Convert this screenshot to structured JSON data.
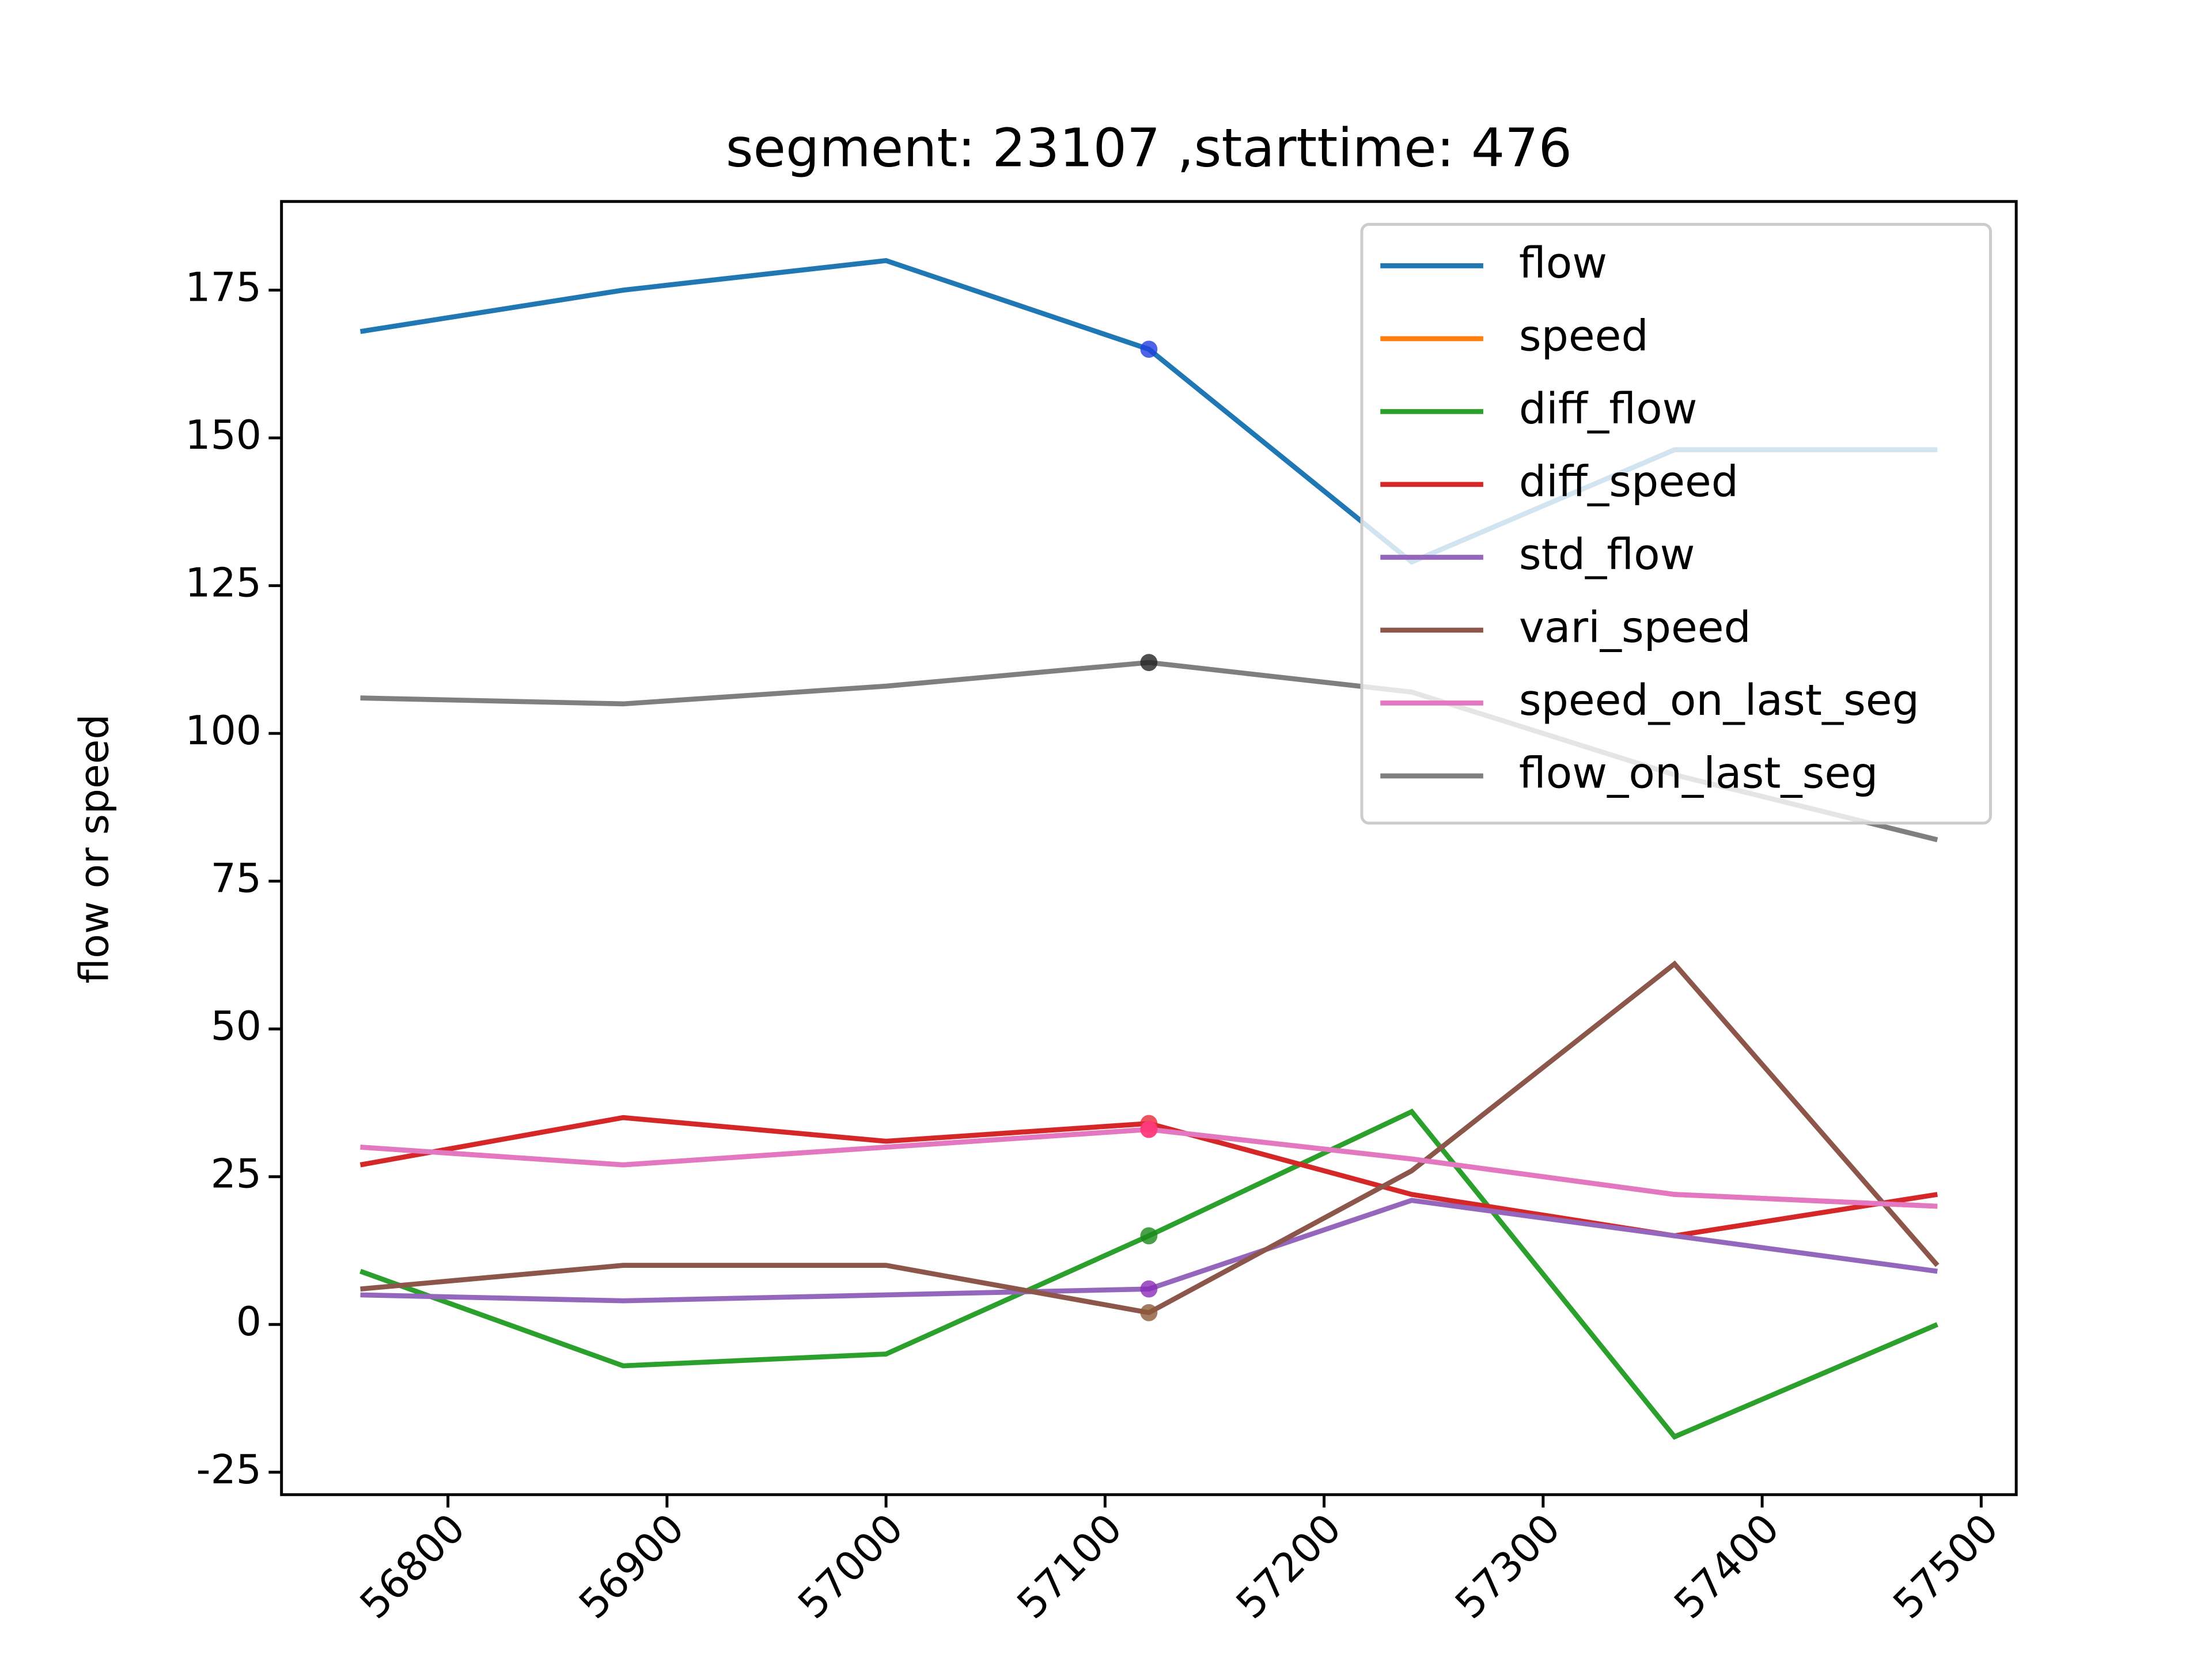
{
  "chart_data": {
    "type": "line",
    "title": "segment: 23107 ,starttime: 476",
    "y_label": "flow or speed",
    "x": [
      56760,
      56880,
      57000,
      57120,
      57240,
      57360,
      57480
    ],
    "xlim": [
      56724,
      57516
    ],
    "xticks": [
      56800,
      56900,
      57000,
      57100,
      57200,
      57300,
      57400,
      57500
    ],
    "ylim": [
      -28.8,
      190
    ],
    "yticks": [
      -25,
      0,
      25,
      50,
      75,
      100,
      125,
      150,
      175
    ],
    "highlight_x": 57120,
    "legend": "upper right",
    "series": [
      {
        "name": "flow",
        "color": "#1f77b4",
        "marker_color": "#1f3fe0",
        "values": [
          168,
          175,
          180,
          165,
          129,
          148,
          148
        ]
      },
      {
        "name": "speed",
        "color": "#ff7f0e",
        "marker_color": "#ff2a2a",
        "values": [
          30,
          27,
          30,
          33,
          28,
          22,
          20
        ]
      },
      {
        "name": "diff_flow",
        "color": "#2ca02c",
        "marker_color": "#1a8a1a",
        "values": [
          9,
          -7,
          -5,
          15,
          36,
          -19,
          0
        ]
      },
      {
        "name": "diff_speed",
        "color": "#d62728",
        "marker_color": "#e8283a",
        "values": [
          27,
          35,
          31,
          34,
          22,
          15,
          22
        ]
      },
      {
        "name": "std_flow",
        "color": "#9467bd",
        "marker_color": "#8a2bb8",
        "values": [
          5,
          4,
          5,
          6,
          21,
          15,
          9
        ]
      },
      {
        "name": "vari_speed",
        "color": "#8c564b",
        "marker_color": "#8c5a3a",
        "values": [
          6,
          10,
          10,
          2,
          26,
          61,
          10
        ]
      },
      {
        "name": "speed_on_last_seg",
        "color": "#e377c2",
        "marker_color": "#ff3d8c",
        "values": [
          30,
          27,
          30,
          33,
          28,
          22,
          20
        ]
      },
      {
        "name": "flow_on_last_seg",
        "color": "#7f7f7f",
        "marker_color": "#222222",
        "values": [
          106,
          105,
          108,
          112,
          107,
          93,
          82
        ]
      }
    ]
  }
}
